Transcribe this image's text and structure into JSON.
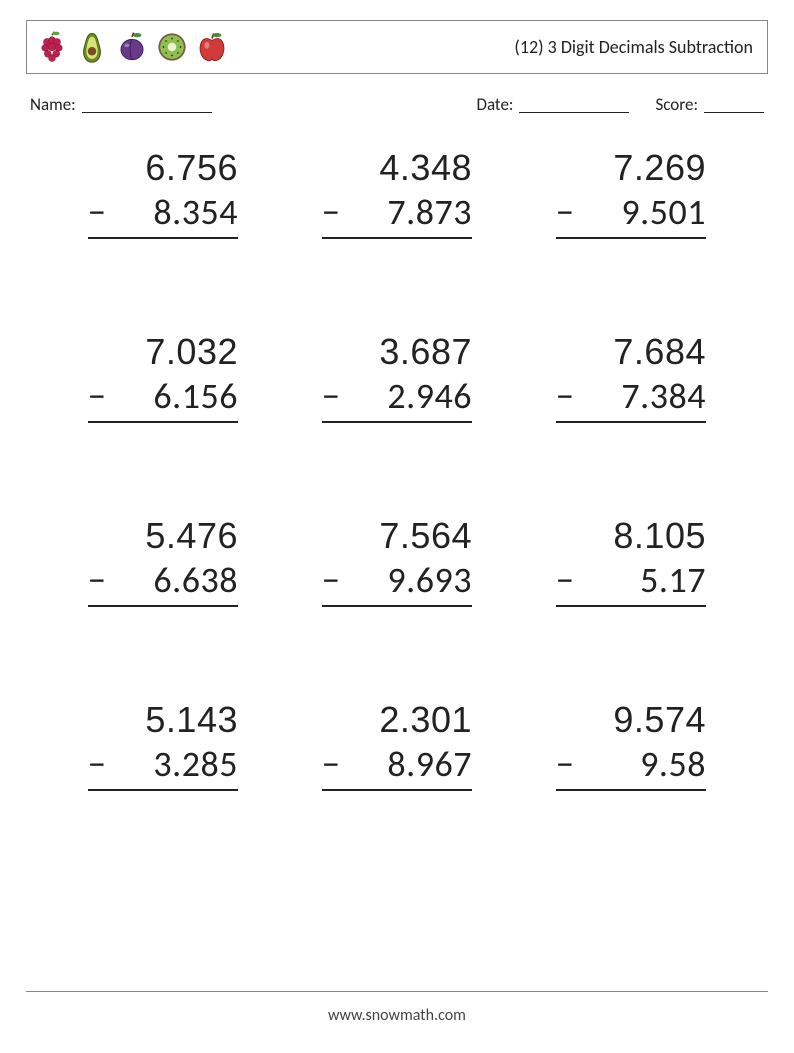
{
  "header": {
    "title": "(12) 3 Digit Decimals Subtraction",
    "fruits": [
      "raspberry",
      "avocado",
      "plum",
      "kiwi",
      "apple"
    ]
  },
  "meta": {
    "name_label": "Name:",
    "date_label": "Date:",
    "score_label": "Score:"
  },
  "problems_layout": {
    "columns": 3,
    "rows": 4,
    "font_size_pt": 27,
    "text_color": "#222222",
    "line_color": "#222222",
    "operator": "−"
  },
  "problems": [
    {
      "a": "6.756",
      "b": "8.354"
    },
    {
      "a": "4.348",
      "b": "7.873"
    },
    {
      "a": "7.269",
      "b": "9.501"
    },
    {
      "a": "7.032",
      "b": "6.156"
    },
    {
      "a": "3.687",
      "b": "2.946"
    },
    {
      "a": "7.684",
      "b": "7.384"
    },
    {
      "a": "5.476",
      "b": "6.638"
    },
    {
      "a": "7.564",
      "b": "9.693"
    },
    {
      "a": "8.105",
      "b": "5.17"
    },
    {
      "a": "5.143",
      "b": "3.285"
    },
    {
      "a": "2.301",
      "b": "8.967"
    },
    {
      "a": "9.574",
      "b": "9.58"
    }
  ],
  "footer": {
    "text": "www.snowmath.com"
  },
  "colors": {
    "page_bg": "#ffffff",
    "border": "#888888",
    "text": "#222222"
  }
}
